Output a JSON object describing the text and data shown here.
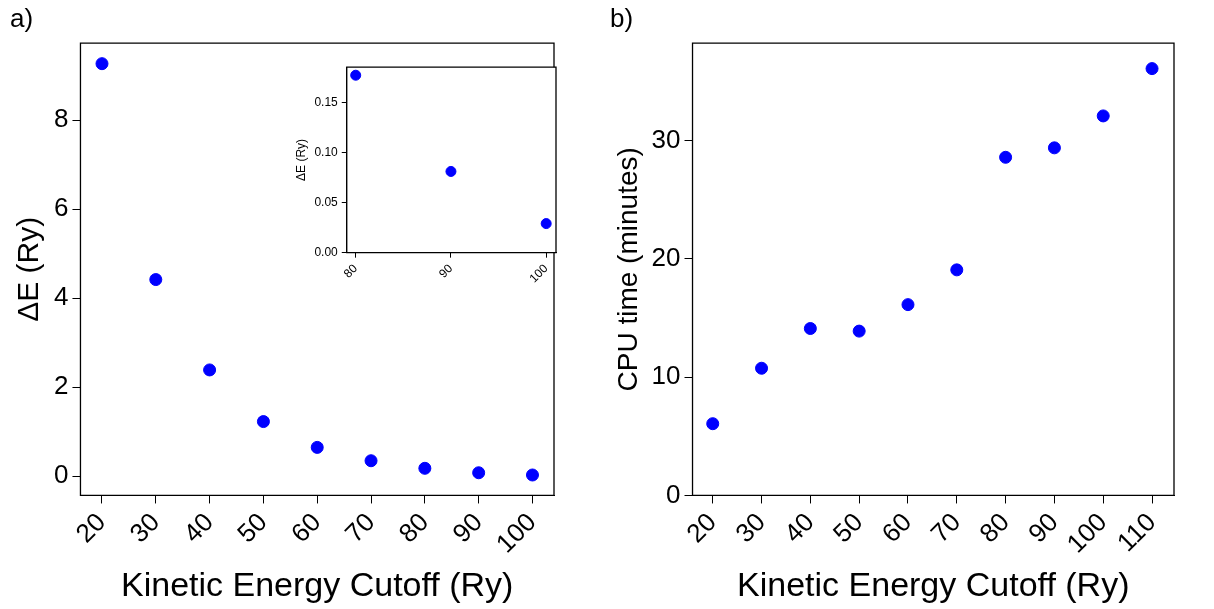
{
  "chart_data": [
    {
      "type": "scatter",
      "title": "a)",
      "xlabel": "Kinetic Energy Cutoff (Ry)",
      "ylabel": "ΔE (Ry)",
      "x": [
        20,
        30,
        40,
        50,
        60,
        70,
        80,
        90,
        100
      ],
      "values": [
        9.27,
        4.42,
        2.39,
        1.23,
        0.65,
        0.35,
        0.18,
        0.08,
        0.03
      ],
      "color": "#0000ff",
      "marker": "circle",
      "xlim": [
        16,
        104
      ],
      "xticks": [
        20,
        30,
        40,
        50,
        60,
        70,
        80,
        90,
        100
      ],
      "ylim": [
        -0.43,
        9.73
      ],
      "yticks": [
        0,
        2,
        4,
        6,
        8
      ]
    },
    {
      "type": "scatter",
      "ylabel": "ΔE (Ry)",
      "x": [
        80,
        90,
        100
      ],
      "values": [
        0.177,
        0.081,
        0.029
      ],
      "color": "#0000ff",
      "marker": "circle",
      "xlim": [
        79.06,
        101.03
      ],
      "xticks": [
        80,
        90,
        100
      ],
      "ylim": [
        0,
        0.185
      ],
      "yticks": [
        {
          "value": 0,
          "label": "0.00"
        },
        {
          "value": 0.05,
          "label": "0.05"
        },
        {
          "value": 0.1,
          "label": "0.10"
        },
        {
          "value": 0.15,
          "label": "0.15"
        }
      ]
    },
    {
      "type": "scatter",
      "title": "b)",
      "xlabel": "Kinetic Energy Cutoff (Ry)",
      "ylabel": "CPU time (minutes)",
      "x": [
        20,
        30,
        40,
        50,
        60,
        70,
        80,
        90,
        100,
        110
      ],
      "values": [
        6.07,
        10.76,
        14.12,
        13.9,
        16.14,
        19.08,
        28.6,
        29.4,
        32.1,
        36.1
      ],
      "color": "#0000ff",
      "marker": "circle",
      "xlim": [
        15.86,
        114.5
      ],
      "xticks": [
        20,
        30,
        40,
        50,
        60,
        70,
        80,
        90,
        100,
        110
      ],
      "ylim": [
        0,
        38.25
      ],
      "yticks": [
        0,
        10,
        20,
        30
      ]
    }
  ]
}
